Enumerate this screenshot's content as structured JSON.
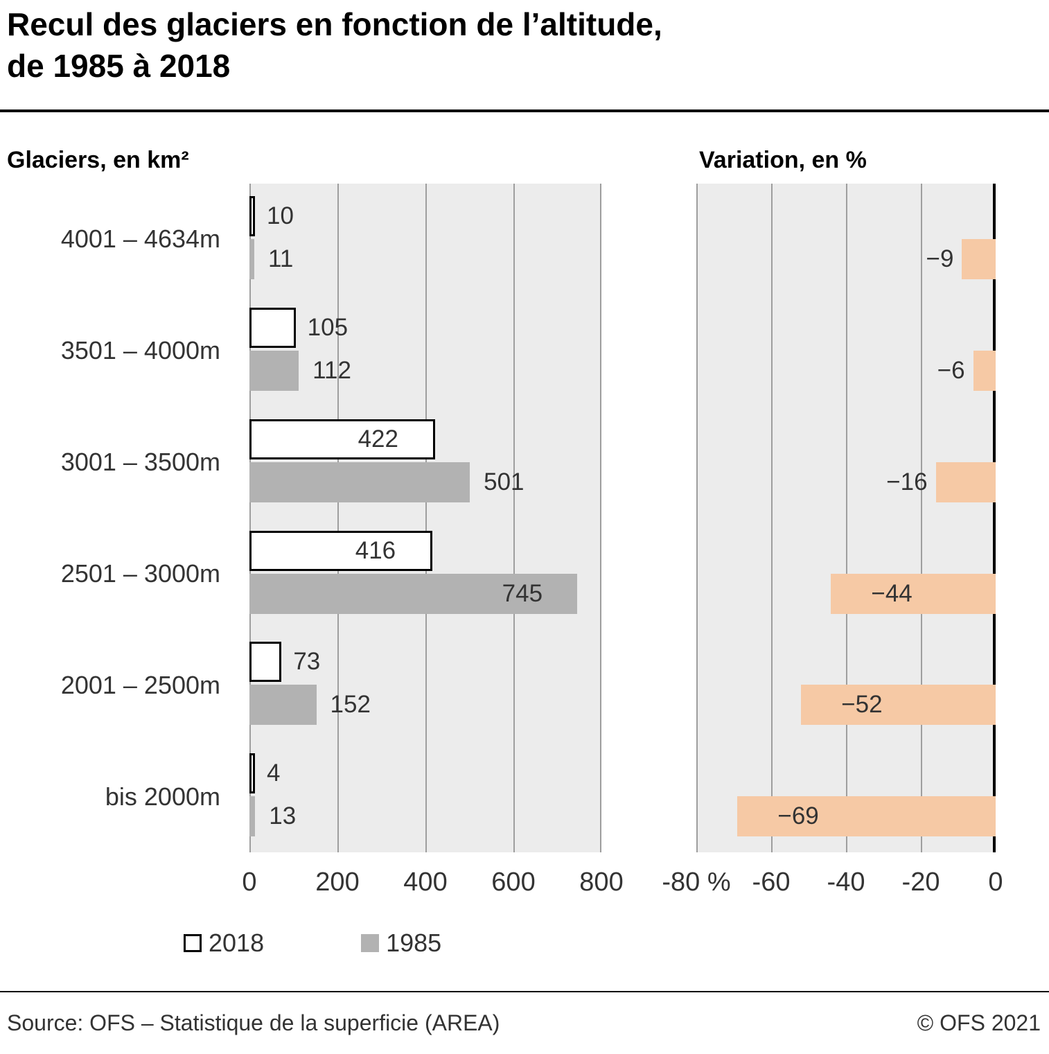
{
  "title": {
    "line1": "Recul des glaciers en fonction de l’altitude,",
    "line2": "de 1985 à 2018"
  },
  "panels": {
    "left_title": "Glaciers, en km²",
    "right_title": "Variation, en %"
  },
  "chart_data": [
    {
      "type": "bar",
      "orientation": "horizontal",
      "title": "Glaciers, en km²",
      "unit": "km²",
      "categories": [
        "4001 – 4634m",
        "3501 – 4000m",
        "3001 – 3500m",
        "2501 – 3000m",
        "2001 – 2500m",
        "bis 2000m"
      ],
      "series": [
        {
          "name": "2018",
          "values": [
            10,
            105,
            422,
            416,
            73,
            4
          ],
          "label_inside": [
            false,
            false,
            true,
            true,
            false,
            false
          ]
        },
        {
          "name": "1985",
          "values": [
            11,
            112,
            501,
            745,
            152,
            13
          ],
          "label_inside": [
            false,
            false,
            false,
            true,
            false,
            false
          ]
        }
      ],
      "xlim": [
        0,
        800
      ],
      "xticks": [
        0,
        200,
        400,
        600,
        800
      ],
      "xtick_labels": [
        "0",
        "200",
        "400",
        "600",
        "800"
      ],
      "grid": true,
      "legend_position": "bottom"
    },
    {
      "type": "bar",
      "orientation": "horizontal",
      "title": "Variation, en %",
      "unit": "%",
      "categories": [
        "4001 – 4634m",
        "3501 – 4000m",
        "3001 – 3500m",
        "2501 – 3000m",
        "2001 – 2500m",
        "bis 2000m"
      ],
      "series": [
        {
          "name": "Variation",
          "values": [
            -9,
            -6,
            -16,
            -44,
            -52,
            -69
          ],
          "value_labels": [
            "−9",
            "−6",
            "−16",
            "−44",
            "−52",
            "−69"
          ],
          "label_inside": [
            false,
            false,
            false,
            true,
            true,
            true
          ]
        }
      ],
      "xlim": [
        -80,
        0
      ],
      "xticks": [
        -80,
        -60,
        -40,
        -20,
        0
      ],
      "xtick_labels": [
        "-80 %",
        "-60",
        "-40",
        "-20",
        "0"
      ],
      "grid": true
    }
  ],
  "legend": {
    "items": [
      {
        "label": "2018",
        "swatch": "white-outline"
      },
      {
        "label": "1985",
        "swatch": "gray"
      }
    ]
  },
  "footer": {
    "source": "Source: OFS – Statistique de la superficie (AREA)",
    "copyright": "© OFS 2021"
  },
  "colors": {
    "bar_2018_fill": "#ffffff",
    "bar_2018_border": "#000000",
    "bar_1985": "#b2b2b2",
    "bar_variation": "#f6c9a5",
    "plot_background": "#ececec",
    "gridline": "#9e9e9e",
    "axis_line": "#000000"
  }
}
